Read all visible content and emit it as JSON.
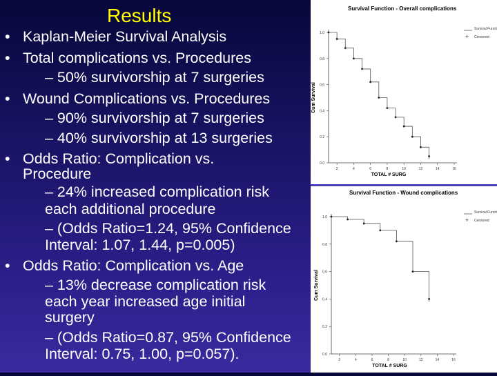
{
  "slide": {
    "title": "Results",
    "bullets": [
      "Kaplan-Meier Survival Analysis",
      "Total complications vs. Procedures",
      "– 50% survivorship at 7 surgeries",
      "Wound Complications vs. Procedures",
      "– 90% survivorship at 7 surgeries",
      "– 40% survivorship at 13 surgeries",
      "Odds Ratio: Complication vs.",
      "Procedure",
      "– 24% increased complication risk",
      "each additional procedure",
      "– (Odds Ratio=1.24, 95% Confidence",
      "Interval: 1.07, 1.44, p=0.005)",
      "Odds Ratio: Complication vs. Age",
      "– 13% decrease complication risk",
      "each year increased age initial",
      "surgery",
      "– (Odds Ratio=0.87, 95% Confidence",
      "Interval: 0.75, 1.00, p=0.057)."
    ]
  },
  "chart_data": [
    {
      "type": "line",
      "title": "Survival Function - Overall complications",
      "xlabel": "TOTAL # SURG",
      "ylabel": "Cum Survival",
      "xlim": [
        1,
        16
      ],
      "ylim": [
        0,
        1.0
      ],
      "xticks": [
        "2",
        "4",
        "6",
        "8",
        "10",
        "12",
        "14",
        "16"
      ],
      "yticks": [
        "0.0",
        "0.2",
        "0.4",
        "0.6",
        "0.8",
        "1.0"
      ],
      "legend": [
        "Survival Function",
        "Censored"
      ],
      "legend_position": "top-right",
      "x": [
        1,
        2,
        3,
        4,
        5,
        6,
        7,
        8,
        9,
        10,
        11,
        12,
        13
      ],
      "y": [
        1.0,
        0.95,
        0.88,
        0.8,
        0.72,
        0.62,
        0.5,
        0.42,
        0.35,
        0.28,
        0.2,
        0.12,
        0.05
      ]
    },
    {
      "type": "line",
      "title": "Survival Function - Wound complications",
      "xlabel": "TOTAL # SURG",
      "ylabel": "Cum Survival",
      "xlim": [
        1,
        16
      ],
      "ylim": [
        0,
        1.0
      ],
      "xticks": [
        "2",
        "4",
        "6",
        "8",
        "10",
        "12",
        "14",
        "16"
      ],
      "yticks": [
        "0.0",
        "0.2",
        "0.4",
        "0.6",
        "0.8",
        "1.0"
      ],
      "legend": [
        "Survival Function",
        "Censored"
      ],
      "legend_position": "top-right",
      "x": [
        1,
        3,
        5,
        7,
        9,
        11,
        13
      ],
      "y": [
        1.0,
        0.98,
        0.95,
        0.9,
        0.82,
        0.6,
        0.4
      ]
    }
  ]
}
